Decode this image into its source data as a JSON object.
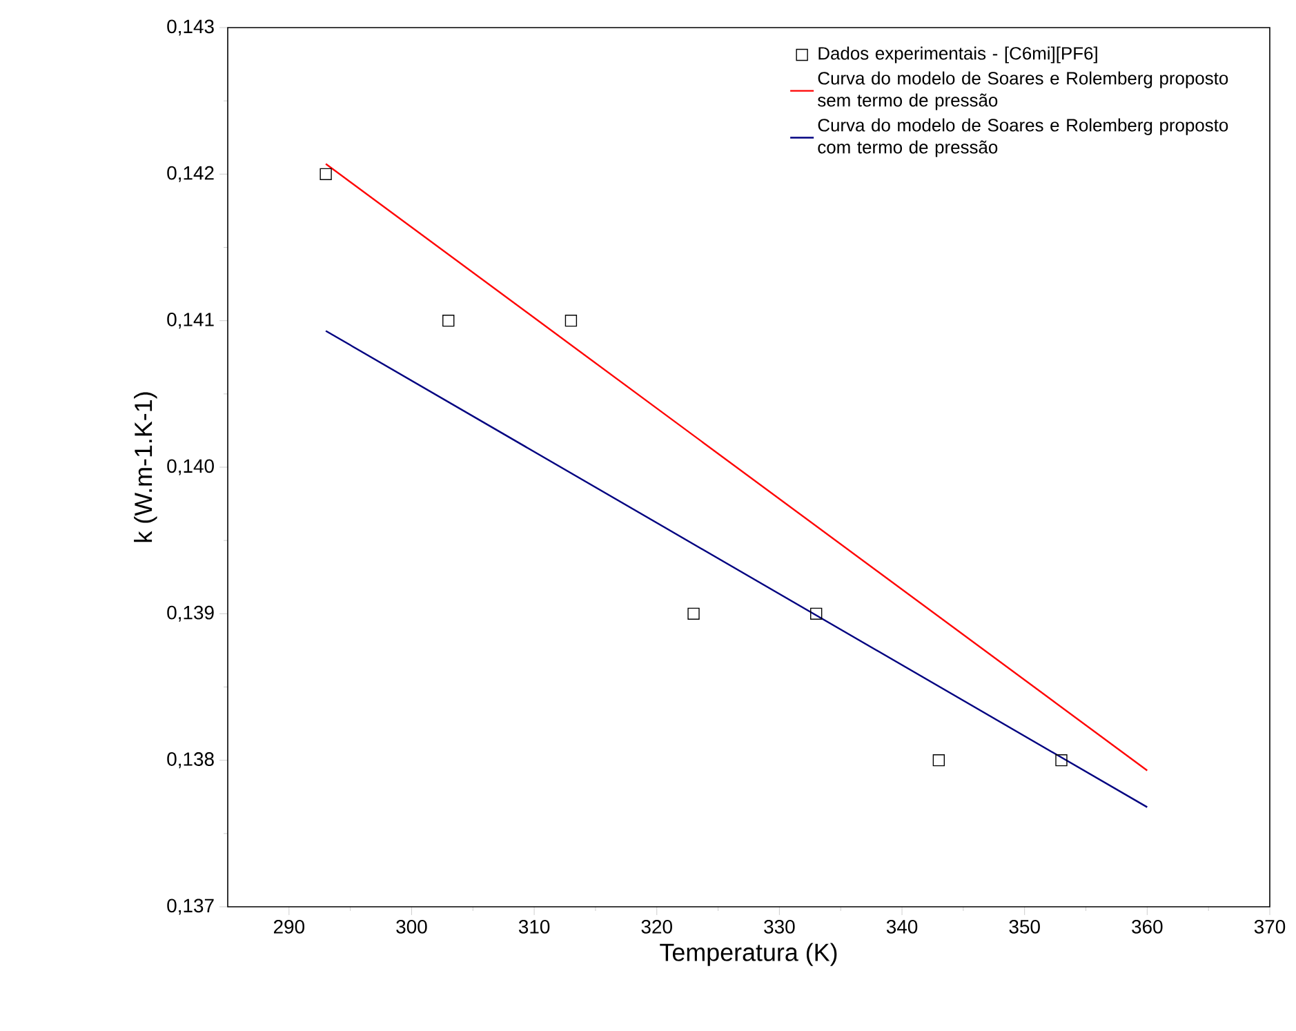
{
  "chart_data": {
    "type": "scatter",
    "xlabel": "Temperatura (K)",
    "ylabel": "k (W.m-1.K-1)",
    "xlim": [
      285,
      370
    ],
    "xticks": [
      290,
      300,
      310,
      320,
      330,
      340,
      350,
      360,
      370
    ],
    "ylim": [
      0.137,
      0.143
    ],
    "yticks": [
      {
        "value": 0.137,
        "label": "0,137"
      },
      {
        "value": 0.138,
        "label": "0,138"
      },
      {
        "value": 0.139,
        "label": "0,139"
      },
      {
        "value": 0.14,
        "label": "0,140"
      },
      {
        "value": 0.141,
        "label": "0,141"
      },
      {
        "value": 0.142,
        "label": "0,142"
      },
      {
        "value": 0.143,
        "label": "0,143"
      }
    ],
    "grid": false,
    "legend": "top right",
    "series": [
      {
        "name": "Dados experimentais - [C6mi][PF6]",
        "type": "scatter",
        "marker": "square",
        "color": "#000000",
        "x": [
          293,
          303,
          313,
          323,
          333,
          343,
          353
        ],
        "values": [
          0.142,
          0.141,
          0.141,
          0.139,
          0.139,
          0.138,
          0.138
        ]
      },
      {
        "name": "Curva do modelo de Soares e Rolemberg proposto sem termo de pressão",
        "type": "line",
        "color": "#ff0000",
        "x": [
          293,
          360
        ],
        "values": [
          0.14207,
          0.13793
        ]
      },
      {
        "name": "Curva do modelo de Soares e Rolemberg proposto com termo de pressão",
        "type": "line",
        "color": "#000080",
        "x": [
          293,
          360
        ],
        "values": [
          0.14093,
          0.13768
        ]
      }
    ]
  }
}
